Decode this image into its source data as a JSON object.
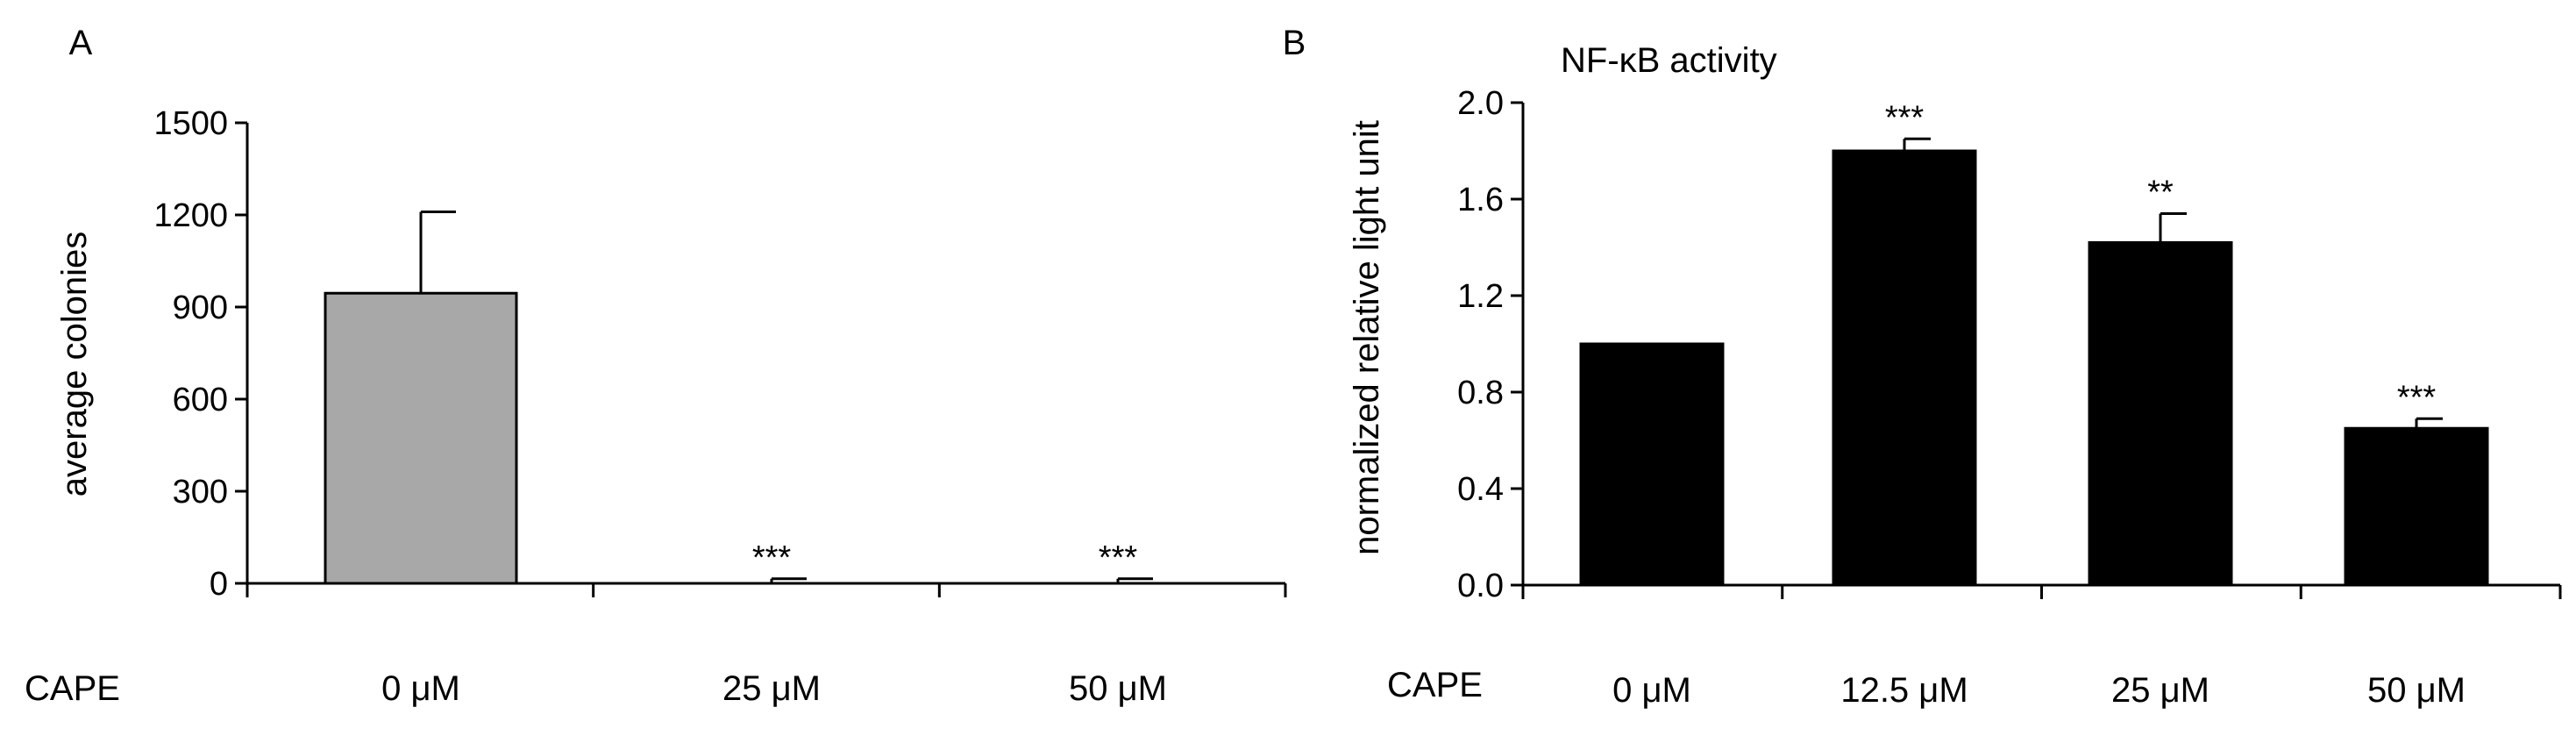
{
  "colors": {
    "panel_a_bar": "#a8a8a8",
    "panel_b_bar": "#000000",
    "axis": "#000000"
  },
  "chart_data": [
    {
      "type": "bar",
      "panel_label": "A",
      "title": "",
      "xlabel": "CAPE",
      "ylabel": "average colonies",
      "categories": [
        "0 μM",
        "25 μM",
        "50 μM"
      ],
      "values": [
        945,
        0,
        0
      ],
      "error_bars": [
        265,
        15,
        15
      ],
      "significance": [
        "",
        "***",
        "***"
      ],
      "ylim": [
        0,
        1500
      ],
      "yticks": [
        "0",
        "300",
        "600",
        "900",
        "1200",
        "1500"
      ],
      "grid": false,
      "bar_color": "#a8a8a8"
    },
    {
      "type": "bar",
      "panel_label": "B",
      "title": "NF-κB activity",
      "xlabel": "CAPE",
      "ylabel": "normalized relative light unit",
      "categories": [
        "0 μM",
        "12.5 μM",
        "25 μM",
        "50 μM"
      ],
      "values": [
        1.0,
        1.8,
        1.42,
        0.65
      ],
      "error_bars": [
        0,
        0.05,
        0.12,
        0.04
      ],
      "significance": [
        "",
        "***",
        "**",
        "***"
      ],
      "ylim": [
        0,
        2.0
      ],
      "yticks": [
        "0.0",
        "0.4",
        "0.8",
        "1.2",
        "1.6",
        "2.0"
      ],
      "grid": false,
      "bar_color": "#000000"
    }
  ]
}
